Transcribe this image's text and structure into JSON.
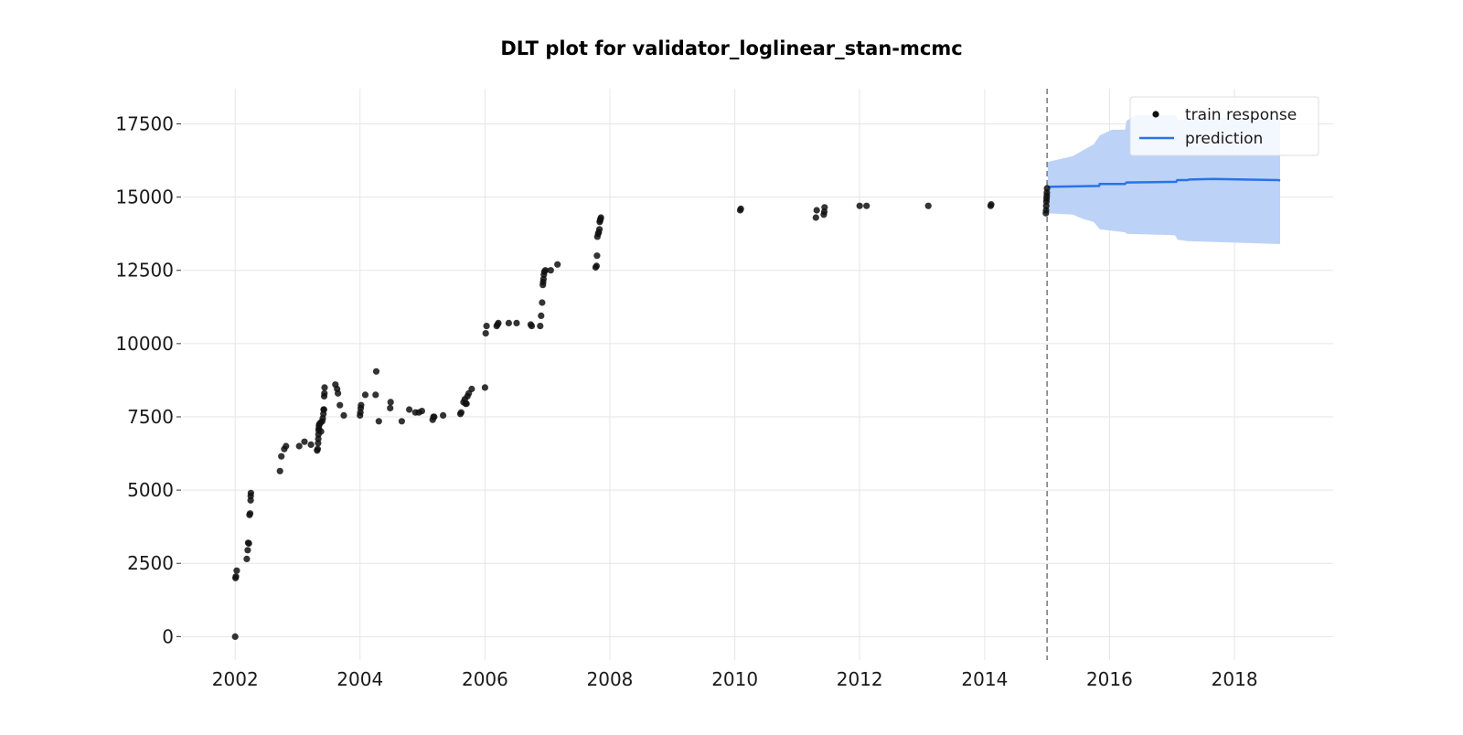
{
  "chart_data": {
    "type": "scatter",
    "title": "DLT plot for validator_loglinear_stan-mcmc",
    "xlabel": "",
    "ylabel": "",
    "xlim": [
      "2001-03-01",
      "2019-08-01"
    ],
    "ylim": [
      -800,
      18700
    ],
    "x_ticks": [
      "2002",
      "2004",
      "2006",
      "2008",
      "2010",
      "2012",
      "2014",
      "2016",
      "2018"
    ],
    "y_ticks": [
      "0",
      "2500",
      "5000",
      "7500",
      "10000",
      "12500",
      "15000",
      "17500"
    ],
    "grid": true,
    "legend_position": "top-right",
    "legend": [
      "train response",
      "prediction"
    ],
    "training_end": "2015-01-01",
    "colors": {
      "train_response": "#111111",
      "prediction": "#2a73e8",
      "interval": "#bcd2f7",
      "cutoff": "#777777",
      "grid": "#e6e6e6"
    },
    "series": [
      {
        "name": "train response",
        "type": "scatter",
        "points": [
          [
            "2002-01-01",
            0
          ],
          [
            "2002-01-03",
            2000
          ],
          [
            "2002-01-05",
            2050
          ],
          [
            "2002-01-10",
            2250
          ],
          [
            "2002-03-10",
            2650
          ],
          [
            "2002-03-15",
            2950
          ],
          [
            "2002-03-18",
            3200
          ],
          [
            "2002-03-22",
            3180
          ],
          [
            "2002-03-26",
            4150
          ],
          [
            "2002-03-29",
            4200
          ],
          [
            "2002-04-01",
            4650
          ],
          [
            "2002-04-02",
            4800
          ],
          [
            "2002-04-03",
            4900
          ],
          [
            "2002-09-20",
            5650
          ],
          [
            "2002-09-28",
            6150
          ],
          [
            "2002-10-15",
            6400
          ],
          [
            "2002-10-25",
            6500
          ],
          [
            "2003-01-10",
            6500
          ],
          [
            "2003-02-10",
            6650
          ],
          [
            "2003-03-20",
            6550
          ],
          [
            "2003-04-25",
            6350
          ],
          [
            "2003-04-28",
            6400
          ],
          [
            "2003-05-01",
            6600
          ],
          [
            "2003-05-02",
            6750
          ],
          [
            "2003-05-03",
            6900
          ],
          [
            "2003-05-04",
            7050
          ],
          [
            "2003-05-05",
            7100
          ],
          [
            "2003-05-06",
            7200
          ],
          [
            "2003-05-08",
            7250
          ],
          [
            "2003-05-15",
            7300
          ],
          [
            "2003-05-18",
            7000
          ],
          [
            "2003-05-25",
            7350
          ],
          [
            "2003-05-28",
            7450
          ],
          [
            "2003-06-01",
            7600
          ],
          [
            "2003-06-02",
            7750
          ],
          [
            "2003-06-04",
            7750
          ],
          [
            "2003-06-05",
            8200
          ],
          [
            "2003-06-07",
            8300
          ],
          [
            "2003-06-08",
            8500
          ],
          [
            "2003-08-10",
            8600
          ],
          [
            "2003-08-20",
            8450
          ],
          [
            "2003-08-25",
            8300
          ],
          [
            "2003-09-05",
            7900
          ],
          [
            "2003-09-28",
            7550
          ],
          [
            "2004-01-01",
            7550
          ],
          [
            "2004-01-03",
            7650
          ],
          [
            "2004-01-05",
            7800
          ],
          [
            "2004-01-07",
            7900
          ],
          [
            "2004-02-01",
            8250
          ],
          [
            "2004-04-01",
            8250
          ],
          [
            "2004-04-05",
            9050
          ],
          [
            "2004-04-20",
            7350
          ],
          [
            "2004-06-25",
            7800
          ],
          [
            "2004-06-28",
            8000
          ],
          [
            "2004-09-01",
            7350
          ],
          [
            "2004-10-15",
            7750
          ],
          [
            "2004-11-20",
            7650
          ],
          [
            "2004-12-10",
            7650
          ],
          [
            "2004-12-28",
            7700
          ],
          [
            "2005-03-01",
            7400
          ],
          [
            "2005-03-05",
            7500
          ],
          [
            "2005-03-10",
            7500
          ],
          [
            "2005-05-01",
            7550
          ],
          [
            "2005-08-10",
            7600
          ],
          [
            "2005-08-15",
            7650
          ],
          [
            "2005-08-28",
            8000
          ],
          [
            "2005-09-05",
            8100
          ],
          [
            "2005-09-10",
            7950
          ],
          [
            "2005-09-15",
            7950
          ],
          [
            "2005-09-20",
            8200
          ],
          [
            "2005-09-28",
            8300
          ],
          [
            "2005-10-15",
            8450
          ],
          [
            "2006-01-01",
            8500
          ],
          [
            "2006-01-05",
            10350
          ],
          [
            "2006-01-10",
            10600
          ],
          [
            "2006-03-10",
            10600
          ],
          [
            "2006-03-15",
            10650
          ],
          [
            "2006-03-20",
            10700
          ],
          [
            "2006-05-20",
            10700
          ],
          [
            "2006-07-05",
            10700
          ],
          [
            "2006-09-25",
            10650
          ],
          [
            "2006-10-01",
            10600
          ],
          [
            "2006-11-20",
            10600
          ],
          [
            "2006-11-25",
            10950
          ],
          [
            "2006-12-01",
            11400
          ],
          [
            "2006-12-05",
            12000
          ],
          [
            "2006-12-07",
            12100
          ],
          [
            "2006-12-09",
            12200
          ],
          [
            "2006-12-11",
            12350
          ],
          [
            "2006-12-14",
            12450
          ],
          [
            "2006-12-20",
            12500
          ],
          [
            "2007-01-20",
            12500
          ],
          [
            "2007-03-01",
            12700
          ],
          [
            "2007-10-10",
            12600
          ],
          [
            "2007-10-15",
            12650
          ],
          [
            "2007-10-18",
            13000
          ],
          [
            "2007-10-20",
            13650
          ],
          [
            "2007-10-25",
            13750
          ],
          [
            "2007-10-28",
            13800
          ],
          [
            "2007-11-01",
            13900
          ],
          [
            "2007-11-03",
            14150
          ],
          [
            "2007-11-05",
            14200
          ],
          [
            "2007-11-07",
            14250
          ],
          [
            "2007-11-10",
            14300
          ],
          [
            "2010-02-01",
            14550
          ],
          [
            "2010-02-05",
            14600
          ],
          [
            "2011-04-20",
            14300
          ],
          [
            "2011-04-25",
            14550
          ],
          [
            "2011-06-05",
            14400
          ],
          [
            "2011-06-08",
            14500
          ],
          [
            "2011-06-10",
            14650
          ],
          [
            "2012-01-01",
            14700
          ],
          [
            "2012-02-10",
            14700
          ],
          [
            "2013-02-05",
            14700
          ],
          [
            "2014-02-05",
            14700
          ],
          [
            "2014-02-08",
            14750
          ],
          [
            "2014-12-25",
            14450
          ],
          [
            "2014-12-26",
            14550
          ],
          [
            "2014-12-27",
            14700
          ],
          [
            "2014-12-28",
            14850
          ],
          [
            "2014-12-29",
            14950
          ],
          [
            "2014-12-30",
            15050
          ],
          [
            "2014-12-31",
            15150
          ],
          [
            "2015-01-01",
            15300
          ]
        ]
      },
      {
        "name": "prediction",
        "type": "line",
        "points": [
          [
            "2015-01-05",
            15350
          ],
          [
            "2015-11-01",
            15380
          ],
          [
            "2015-11-05",
            15450
          ],
          [
            "2016-04-01",
            15450
          ],
          [
            "2016-04-10",
            15500
          ],
          [
            "2017-01-25",
            15520
          ],
          [
            "2017-02-01",
            15580
          ],
          [
            "2017-04-01",
            15580
          ],
          [
            "2017-04-10",
            15600
          ],
          [
            "2017-09-01",
            15620
          ],
          [
            "2018-03-01",
            15600
          ],
          [
            "2018-09-15",
            15580
          ],
          [
            "2018-09-25",
            15560
          ]
        ]
      },
      {
        "name": "prediction interval",
        "type": "area",
        "upper": [
          [
            "2015-01-05",
            16200
          ],
          [
            "2015-06-01",
            16400
          ],
          [
            "2015-08-01",
            16600
          ],
          [
            "2015-10-01",
            16800
          ],
          [
            "2015-11-05",
            17100
          ],
          [
            "2016-01-15",
            17300
          ],
          [
            "2016-04-01",
            17300
          ],
          [
            "2016-04-10",
            17600
          ],
          [
            "2016-06-01",
            17800
          ],
          [
            "2017-01-15",
            17800
          ],
          [
            "2017-01-25",
            17800
          ],
          [
            "2017-02-01",
            17600
          ],
          [
            "2017-04-01",
            17700
          ],
          [
            "2018-09-25",
            17700
          ]
        ],
        "lower": [
          [
            "2015-01-05",
            14450
          ],
          [
            "2015-06-01",
            14400
          ],
          [
            "2015-08-01",
            14250
          ],
          [
            "2015-10-01",
            14150
          ],
          [
            "2015-11-05",
            13900
          ],
          [
            "2016-01-15",
            13850
          ],
          [
            "2016-04-01",
            13800
          ],
          [
            "2016-04-10",
            13750
          ],
          [
            "2017-01-15",
            13700
          ],
          [
            "2017-01-25",
            13650
          ],
          [
            "2017-02-01",
            13550
          ],
          [
            "2017-04-01",
            13500
          ],
          [
            "2018-09-25",
            13400
          ]
        ]
      }
    ]
  }
}
